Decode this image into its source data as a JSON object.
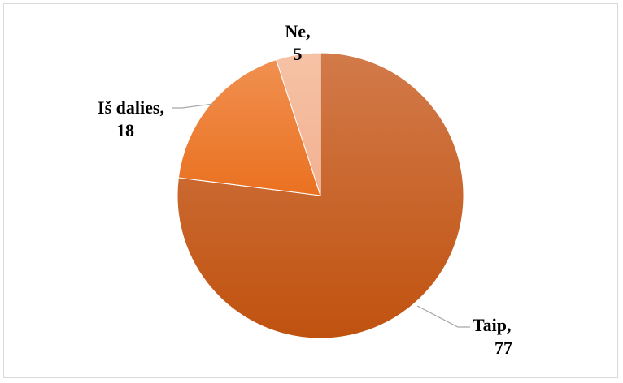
{
  "chart_data": {
    "type": "pie",
    "title": "",
    "legend": "none",
    "slices": [
      {
        "label": "Taip,",
        "value": 77,
        "value_text": "77",
        "color": "#c55a11"
      },
      {
        "label": "Iš dalies,",
        "value": 18,
        "value_text": "18",
        "color": "#ed7d31"
      },
      {
        "label": "Ne,",
        "value": 5,
        "value_text": "5",
        "color": "#f4b183"
      }
    ]
  }
}
